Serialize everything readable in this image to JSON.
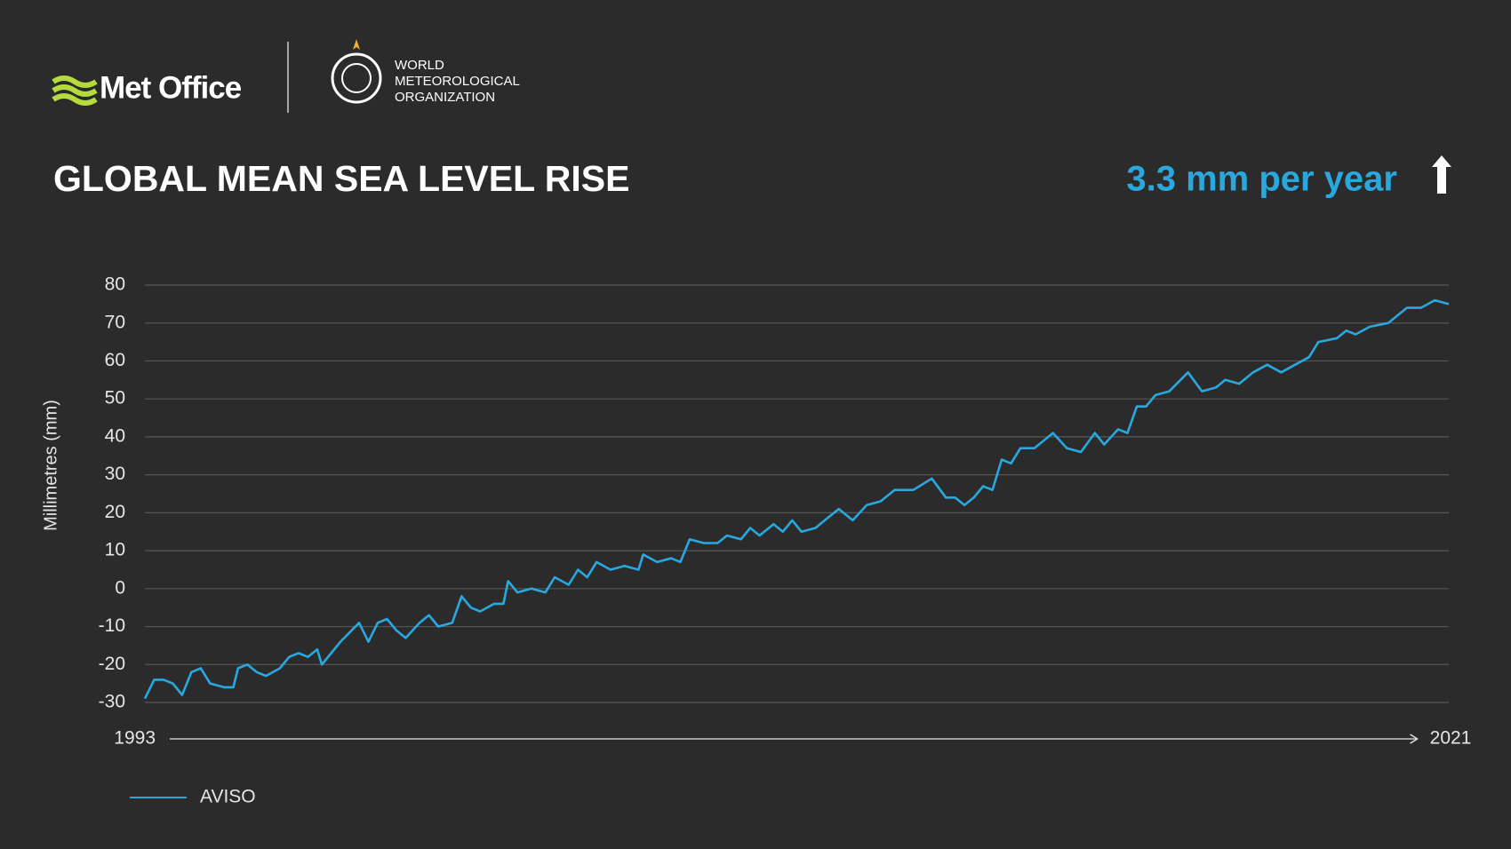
{
  "header": {
    "brand": "Met Office",
    "partner": [
      "WORLD",
      "METEOROLOGICAL",
      "ORGANIZATION"
    ]
  },
  "chart_data": {
    "type": "line",
    "title": "GLOBAL MEAN SEA LEVEL RISE",
    "subtitle": "3.3 mm per year",
    "y_label": "Millimetres (mm)",
    "xlim": [
      1993,
      2021
    ],
    "xticks": [
      1993,
      2021
    ],
    "ylim": [
      -30,
      80
    ],
    "yticks": [
      -30,
      -20,
      -10,
      0,
      10,
      20,
      30,
      40,
      50,
      60,
      70,
      80
    ],
    "grid": true,
    "x": [
      1993.0,
      1993.2,
      1993.4,
      1993.6,
      1993.8,
      1994.0,
      1994.2,
      1994.4,
      1994.7,
      1994.9,
      1995.0,
      1995.2,
      1995.4,
      1995.6,
      1995.9,
      1996.1,
      1996.3,
      1996.5,
      1996.7,
      1996.8,
      1997.0,
      1997.2,
      1997.6,
      1997.8,
      1998.0,
      1998.2,
      1998.4,
      1998.6,
      1998.9,
      1999.1,
      1999.3,
      1999.6,
      1999.8,
      2000.0,
      2000.2,
      2000.5,
      2000.7,
      2000.8,
      2001.0,
      2001.3,
      2001.6,
      2001.8,
      2002.1,
      2002.3,
      2002.5,
      2002.7,
      2003.0,
      2003.3,
      2003.6,
      2003.7,
      2004.0,
      2004.3,
      2004.5,
      2004.7,
      2005.0,
      2005.3,
      2005.5,
      2005.8,
      2006.0,
      2006.2,
      2006.5,
      2006.7,
      2006.9,
      2007.1,
      2007.4,
      2007.6,
      2007.9,
      2008.2,
      2008.5,
      2008.8,
      2009.1,
      2009.5,
      2009.9,
      2010.2,
      2010.4,
      2010.6,
      2010.8,
      2011.0,
      2011.2,
      2011.4,
      2011.6,
      2011.8,
      2012.1,
      2012.5,
      2012.8,
      2013.1,
      2013.4,
      2013.6,
      2013.9,
      2014.1,
      2014.3,
      2014.5,
      2014.7,
      2015.0,
      2015.4,
      2015.7,
      2016.0,
      2016.2,
      2016.5,
      2016.8,
      2017.1,
      2017.4,
      2017.7,
      2018.0,
      2018.2,
      2018.6,
      2018.8,
      2019.0,
      2019.3,
      2019.7,
      2020.1,
      2020.4,
      2020.7,
      2021.0
    ],
    "series": [
      {
        "name": "AVISO",
        "color": "#29a8e0",
        "values": [
          -29,
          -24,
          -24,
          -25,
          -28,
          -22,
          -21,
          -25,
          -26,
          -26,
          -21,
          -20,
          -22,
          -23,
          -21,
          -18,
          -17,
          -18,
          -16,
          -20,
          -17,
          -14,
          -9,
          -14,
          -9,
          -8,
          -11,
          -13,
          -9,
          -7,
          -10,
          -9,
          -2,
          -5,
          -6,
          -4,
          -4,
          2,
          -1,
          0,
          -1,
          3,
          1,
          5,
          3,
          7,
          5,
          6,
          5,
          9,
          7,
          8,
          7,
          13,
          12,
          12,
          14,
          13,
          16,
          14,
          17,
          15,
          18,
          15,
          16,
          18,
          21,
          18,
          22,
          23,
          26,
          26,
          29,
          24,
          24,
          22,
          24,
          27,
          26,
          34,
          33,
          37,
          37,
          41,
          37,
          36,
          41,
          38,
          42,
          41,
          48,
          48,
          51,
          52,
          57,
          52,
          53,
          55,
          54,
          57,
          59,
          57,
          59,
          61,
          65,
          66,
          68,
          67,
          69,
          70,
          74,
          74,
          76,
          75
        ]
      }
    ]
  }
}
